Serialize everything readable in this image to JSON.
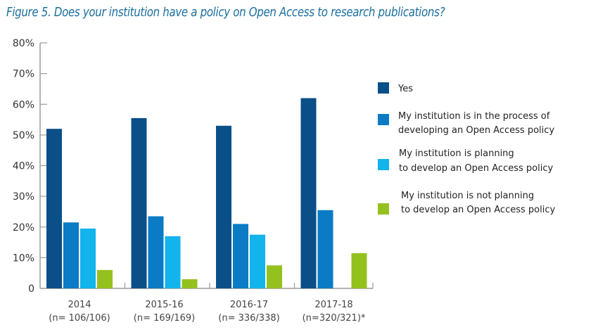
{
  "chart_data": {
    "type": "bar",
    "title": "Figure 5. Does your institution have a policy on Open Access to research publications?",
    "xlabel": "",
    "ylabel": "",
    "ylim": [
      0,
      80
    ],
    "yticks": [
      0,
      10,
      20,
      30,
      40,
      50,
      60,
      70,
      80
    ],
    "ytick_labels": [
      "0",
      "10%",
      "20%",
      "30%",
      "40%",
      "50%",
      "60%",
      "70%",
      "80%"
    ],
    "grid": false,
    "legend_position": "right",
    "categories": [
      "2014",
      "2015-16",
      "2016-17",
      "2017-18"
    ],
    "category_sublabels": [
      "(n= 106/106)",
      "(n= 169/169)",
      "(n= 336/338)",
      "(n=320/321)*"
    ],
    "series": [
      {
        "name": "Yes",
        "legend_lines": [
          "Yes"
        ],
        "color": "#0b4f88",
        "values": [
          52,
          55.5,
          53,
          62
        ]
      },
      {
        "name": "My institution is in the process of developing an Open Access policy",
        "legend_lines": [
          "My institution is in the process of",
          "developing an Open Access policy"
        ],
        "color": "#0a7bc4",
        "values": [
          21.5,
          23.5,
          21,
          25.5
        ]
      },
      {
        "name": "My institution is planning to develop an Open Access policy",
        "legend_lines": [
          "My institution is planning",
          "to develop an Open Access policy"
        ],
        "color": "#13b3ec",
        "values": [
          19.5,
          17,
          17.5,
          0
        ]
      },
      {
        "name": "My institution is not planning to develop an Open Access policy",
        "legend_lines": [
          "My institution is not planning",
          "to develop an Open Access policy"
        ],
        "color": "#95c11f",
        "values": [
          6,
          3,
          7.5,
          11.5
        ]
      }
    ]
  }
}
